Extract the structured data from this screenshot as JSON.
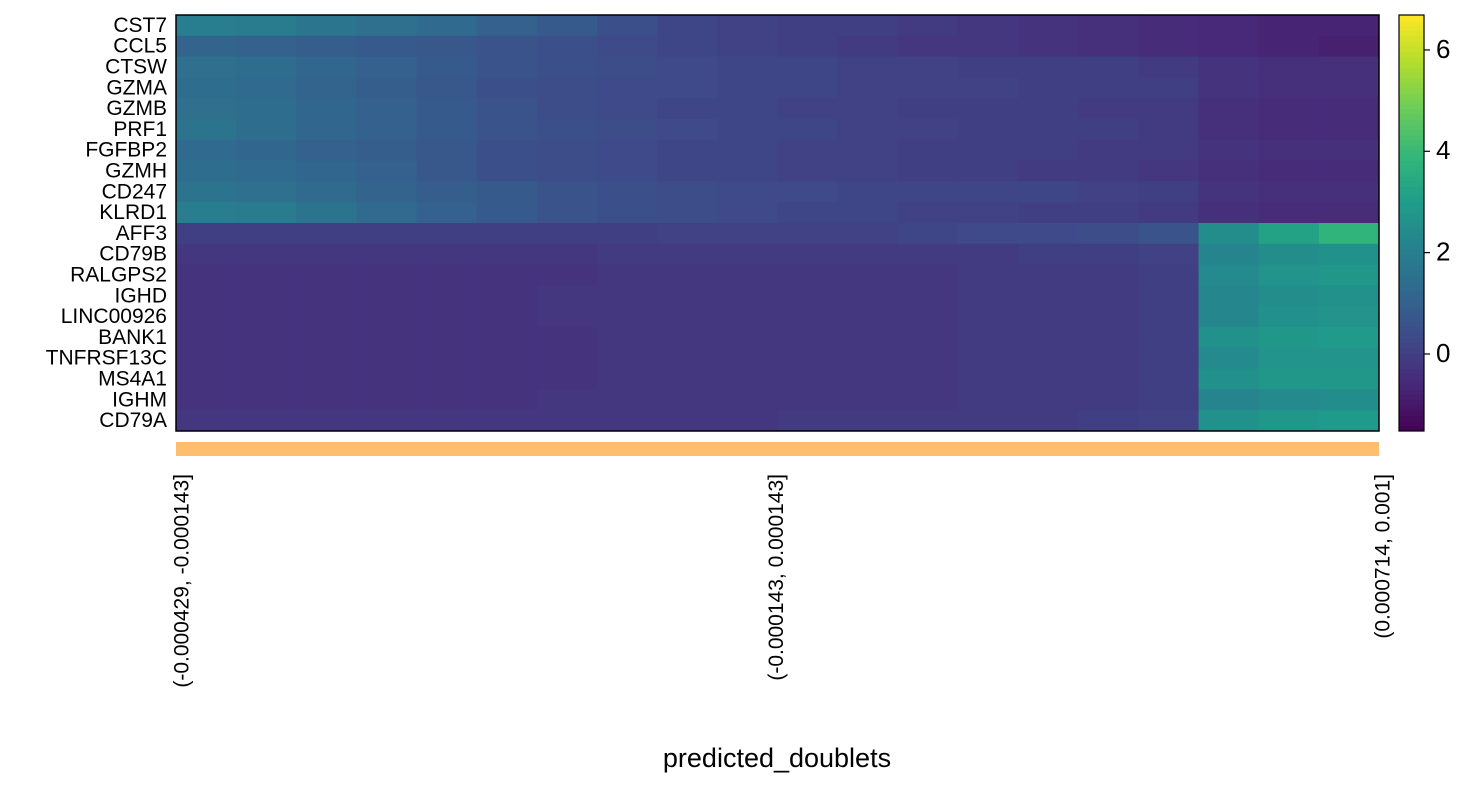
{
  "chart_data": {
    "type": "heatmap",
    "x_label": "predicted_doublets",
    "rows": [
      "CST7",
      "CCL5",
      "CTSW",
      "GZMA",
      "GZMB",
      "PRF1",
      "FGFBP2",
      "GZMH",
      "CD247",
      "KLRD1",
      "AFF3",
      "CD79B",
      "RALGPS2",
      "IGHD",
      "LINC00926",
      "BANK1",
      "TNFRSF13C",
      "MS4A1",
      "IGHM",
      "CD79A"
    ],
    "categories": [
      "(-0.000429, -0.000143]",
      null,
      null,
      null,
      null,
      null,
      null,
      null,
      null,
      null,
      "(-0.000143, 0.000143]",
      null,
      null,
      null,
      null,
      null,
      null,
      null,
      null,
      "(0.000714, 0.001]"
    ],
    "group_color": "#fdbf6f",
    "colormap": "viridis",
    "zlim": [
      -1.52,
      6.69
    ],
    "zticks": [
      0,
      2,
      4,
      6
    ],
    "values": [
      [
        2.0,
        1.9,
        1.7,
        1.5,
        1.3,
        1.0,
        0.8,
        0.5,
        0.2,
        0.1,
        0.0,
        0.0,
        -0.1,
        -0.2,
        -0.3,
        -0.4,
        -0.5,
        -0.6,
        -0.7,
        -0.7
      ],
      [
        1.1,
        1.0,
        0.9,
        0.8,
        0.7,
        0.6,
        0.5,
        0.3,
        0.2,
        0.1,
        0.0,
        -0.1,
        -0.2,
        -0.2,
        -0.3,
        -0.4,
        -0.5,
        -0.6,
        -0.7,
        -0.8
      ],
      [
        1.5,
        1.4,
        1.2,
        1.0,
        0.8,
        0.6,
        0.5,
        0.4,
        0.3,
        0.2,
        0.2,
        0.1,
        0.1,
        0.0,
        0.0,
        0.0,
        -0.1,
        -0.3,
        -0.4,
        -0.4
      ],
      [
        1.4,
        1.3,
        1.1,
        0.9,
        0.7,
        0.5,
        0.4,
        0.3,
        0.3,
        0.2,
        0.2,
        0.1,
        0.1,
        0.1,
        0.0,
        0.0,
        0.0,
        -0.3,
        -0.4,
        -0.4
      ],
      [
        1.5,
        1.4,
        1.2,
        1.0,
        0.8,
        0.6,
        0.4,
        0.3,
        0.2,
        0.2,
        0.1,
        0.1,
        0.0,
        0.0,
        0.0,
        -0.1,
        -0.1,
        -0.4,
        -0.5,
        -0.5
      ],
      [
        1.6,
        1.4,
        1.2,
        1.0,
        0.8,
        0.6,
        0.5,
        0.4,
        0.3,
        0.2,
        0.2,
        0.1,
        0.1,
        0.0,
        0.0,
        0.0,
        -0.1,
        -0.4,
        -0.5,
        -0.5
      ],
      [
        1.3,
        1.2,
        1.0,
        0.9,
        0.7,
        0.5,
        0.4,
        0.3,
        0.2,
        0.2,
        0.1,
        0.1,
        0.0,
        0.0,
        0.0,
        -0.1,
        -0.1,
        -0.3,
        -0.4,
        -0.4
      ],
      [
        1.4,
        1.3,
        1.2,
        1.0,
        0.7,
        0.5,
        0.4,
        0.3,
        0.2,
        0.2,
        0.1,
        0.1,
        0.0,
        0.0,
        -0.1,
        -0.1,
        -0.2,
        -0.4,
        -0.5,
        -0.5
      ],
      [
        1.6,
        1.5,
        1.3,
        1.1,
        0.9,
        0.8,
        0.6,
        0.5,
        0.4,
        0.3,
        0.3,
        0.2,
        0.2,
        0.2,
        0.2,
        0.1,
        0.0,
        -0.3,
        -0.4,
        -0.4
      ],
      [
        2.0,
        1.9,
        1.6,
        1.3,
        1.0,
        0.8,
        0.6,
        0.5,
        0.4,
        0.3,
        0.2,
        0.2,
        0.1,
        0.1,
        0.0,
        0.0,
        -0.1,
        -0.4,
        -0.5,
        -0.5
      ],
      [
        0.0,
        0.0,
        0.0,
        0.0,
        0.0,
        0.0,
        0.0,
        0.0,
        0.1,
        0.1,
        0.1,
        0.1,
        0.2,
        0.3,
        0.3,
        0.4,
        0.6,
        2.5,
        3.2,
        3.8
      ],
      [
        -0.2,
        -0.2,
        -0.2,
        -0.2,
        -0.2,
        -0.2,
        -0.2,
        -0.1,
        -0.1,
        -0.1,
        -0.1,
        -0.1,
        -0.1,
        -0.1,
        0.0,
        0.0,
        0.1,
        2.2,
        2.5,
        2.6
      ],
      [
        -0.3,
        -0.3,
        -0.3,
        -0.3,
        -0.3,
        -0.3,
        -0.3,
        -0.2,
        -0.2,
        -0.2,
        -0.2,
        -0.2,
        -0.2,
        -0.1,
        -0.1,
        -0.1,
        0.0,
        2.4,
        2.7,
        2.8
      ],
      [
        -0.3,
        -0.3,
        -0.3,
        -0.3,
        -0.3,
        -0.3,
        -0.2,
        -0.2,
        -0.2,
        -0.2,
        -0.2,
        -0.2,
        -0.2,
        -0.1,
        -0.1,
        -0.1,
        0.0,
        2.3,
        2.5,
        2.6
      ],
      [
        -0.3,
        -0.3,
        -0.3,
        -0.3,
        -0.3,
        -0.3,
        -0.2,
        -0.2,
        -0.2,
        -0.2,
        -0.2,
        -0.2,
        -0.2,
        -0.1,
        -0.1,
        -0.1,
        0.0,
        2.3,
        2.6,
        2.7
      ],
      [
        -0.3,
        -0.3,
        -0.3,
        -0.3,
        -0.3,
        -0.3,
        -0.3,
        -0.2,
        -0.2,
        -0.2,
        -0.2,
        -0.2,
        -0.2,
        -0.1,
        -0.1,
        -0.1,
        0.0,
        2.6,
        2.8,
        2.9
      ],
      [
        -0.3,
        -0.3,
        -0.3,
        -0.3,
        -0.3,
        -0.3,
        -0.3,
        -0.2,
        -0.2,
        -0.2,
        -0.2,
        -0.2,
        -0.2,
        -0.1,
        -0.1,
        -0.1,
        0.0,
        2.4,
        2.7,
        2.7
      ],
      [
        -0.3,
        -0.3,
        -0.3,
        -0.3,
        -0.3,
        -0.3,
        -0.3,
        -0.2,
        -0.2,
        -0.2,
        -0.2,
        -0.2,
        -0.2,
        -0.1,
        -0.1,
        -0.1,
        0.0,
        2.6,
        2.8,
        2.8
      ],
      [
        -0.3,
        -0.3,
        -0.3,
        -0.3,
        -0.3,
        -0.3,
        -0.2,
        -0.2,
        -0.2,
        -0.2,
        -0.2,
        -0.2,
        -0.2,
        -0.1,
        -0.1,
        -0.1,
        0.0,
        2.2,
        2.4,
        2.5
      ],
      [
        -0.2,
        -0.2,
        -0.2,
        -0.2,
        -0.2,
        -0.2,
        -0.2,
        -0.2,
        -0.2,
        -0.2,
        -0.1,
        -0.1,
        -0.1,
        -0.1,
        -0.1,
        0.0,
        0.1,
        2.6,
        2.8,
        2.9
      ]
    ]
  }
}
